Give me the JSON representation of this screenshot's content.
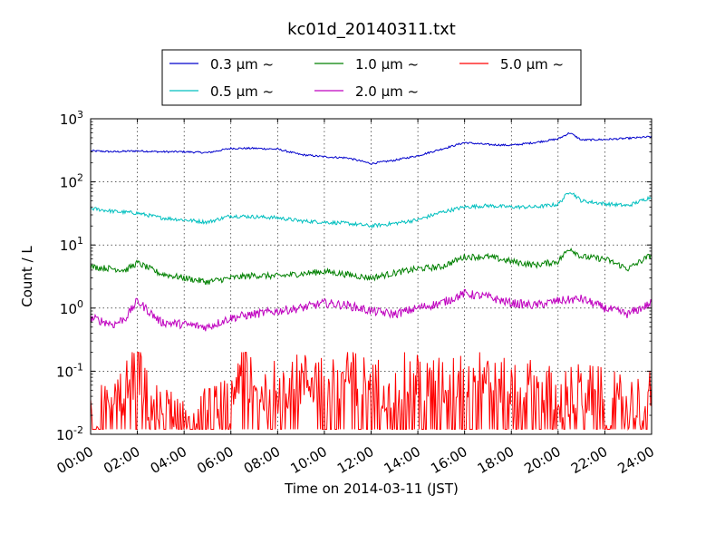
{
  "chart_data": {
    "type": "line",
    "title": "kc01d_20140311.txt",
    "xlabel": "Time on 2014-03-11 (JST)",
    "ylabel": "Count / L",
    "xlim": [
      "00:00",
      "24:00"
    ],
    "x_ticks": [
      "00:00",
      "02:00",
      "04:00",
      "06:00",
      "08:00",
      "10:00",
      "12:00",
      "14:00",
      "16:00",
      "18:00",
      "20:00",
      "22:00",
      "24:00"
    ],
    "yscale": "log",
    "ylim": [
      0.01,
      1000
    ],
    "y_ticks": [
      {
        "base": "10",
        "exp": "-2"
      },
      {
        "base": "10",
        "exp": "-1"
      },
      {
        "base": "10",
        "exp": "0"
      },
      {
        "base": "10",
        "exp": "1"
      },
      {
        "base": "10",
        "exp": "2"
      },
      {
        "base": "10",
        "exp": "3"
      }
    ],
    "grid": true,
    "legend_position": "top-center",
    "series": [
      {
        "name": "0.3 μm ~",
        "color": "#0000cc",
        "x_hours": [
          0,
          1,
          2,
          3,
          4,
          5,
          6,
          7,
          8,
          9,
          10,
          11,
          12,
          13,
          14,
          15,
          16,
          17,
          18,
          19,
          20,
          20.5,
          21,
          22,
          23,
          24
        ],
        "values": [
          310,
          300,
          310,
          300,
          300,
          290,
          340,
          340,
          330,
          270,
          250,
          240,
          195,
          220,
          260,
          330,
          420,
          390,
          380,
          420,
          480,
          600,
          460,
          470,
          490,
          520
        ]
      },
      {
        "name": "0.5 μm ~",
        "color": "#00bfbf",
        "x_hours": [
          0,
          1,
          2,
          3,
          4,
          5,
          6,
          7,
          8,
          9,
          10,
          11,
          12,
          13,
          14,
          15,
          16,
          17,
          18,
          19,
          20,
          20.5,
          21,
          22,
          23,
          24
        ],
        "values": [
          38,
          34,
          32,
          27,
          25,
          23,
          29,
          28,
          27,
          24,
          23,
          22,
          20,
          22,
          25,
          33,
          40,
          42,
          40,
          40,
          44,
          72,
          50,
          45,
          42,
          58
        ]
      },
      {
        "name": "1.0 μm ~",
        "color": "#008000",
        "x_hours": [
          0,
          1,
          1.5,
          2,
          3,
          4,
          5,
          6,
          7,
          8,
          9,
          10,
          11,
          12,
          13,
          14,
          15,
          16,
          17,
          18,
          19,
          20,
          20.5,
          21,
          22,
          23,
          24
        ],
        "values": [
          4.5,
          4.2,
          4.0,
          5.2,
          3.5,
          3.0,
          2.6,
          3.0,
          3.3,
          3.2,
          3.5,
          3.8,
          3.4,
          3.0,
          3.6,
          4.2,
          4.5,
          6.5,
          6.5,
          5.5,
          4.8,
          5.5,
          9.0,
          6.5,
          6.0,
          4.2,
          7.0
        ]
      },
      {
        "name": "2.0 μm ~",
        "color": "#bf00bf",
        "x_hours": [
          0,
          1,
          1.5,
          2,
          3,
          4,
          5,
          6,
          7,
          8,
          9,
          10,
          11,
          12,
          13,
          14,
          15,
          16,
          17,
          18,
          19,
          20,
          21,
          22,
          23,
          24
        ],
        "values": [
          0.7,
          0.55,
          0.7,
          1.3,
          0.6,
          0.55,
          0.5,
          0.7,
          0.8,
          0.9,
          1.0,
          1.2,
          1.1,
          0.9,
          0.8,
          1.0,
          1.2,
          1.7,
          1.5,
          1.2,
          1.1,
          1.3,
          1.4,
          1.0,
          0.8,
          1.2
        ]
      },
      {
        "name": "5.0 μm ~",
        "color": "#ff0000",
        "x_hours": [
          0,
          1,
          1.5,
          2,
          2.5,
          3,
          4,
          5,
          6,
          6.5,
          7,
          8,
          9,
          10,
          11,
          12,
          13,
          14,
          15,
          16,
          17,
          18,
          19,
          20,
          21,
          22,
          23,
          24
        ],
        "values": [
          0.02,
          0.03,
          0.05,
          0.13,
          0.03,
          0.02,
          0.02,
          0.02,
          0.03,
          0.18,
          0.04,
          0.06,
          0.07,
          0.08,
          0.09,
          0.06,
          0.07,
          0.08,
          0.06,
          0.1,
          0.08,
          0.05,
          0.06,
          0.04,
          0.05,
          0.04,
          0.03,
          0.04
        ]
      }
    ]
  }
}
